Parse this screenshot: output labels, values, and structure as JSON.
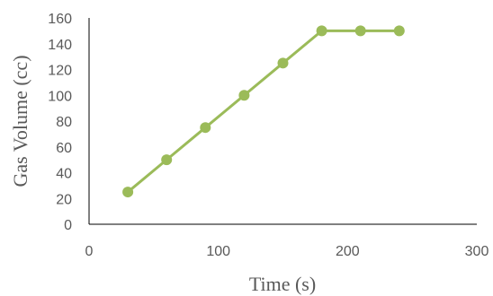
{
  "chart_data": {
    "type": "line",
    "title": "",
    "xlabel": "Time (s)",
    "ylabel": "Gas Volume (cc)",
    "xlim": [
      0,
      300
    ],
    "ylim": [
      0,
      160
    ],
    "x_ticks": [
      0,
      100,
      200,
      300
    ],
    "y_ticks": [
      0,
      20,
      40,
      60,
      80,
      100,
      120,
      140,
      160
    ],
    "grid": false,
    "legend": "none",
    "series": [
      {
        "color": "#9bbb59",
        "x": [
          30,
          60,
          90,
          120,
          150,
          180,
          210,
          240
        ],
        "y": [
          25,
          50,
          75,
          100,
          125,
          150,
          150,
          150
        ]
      }
    ]
  }
}
